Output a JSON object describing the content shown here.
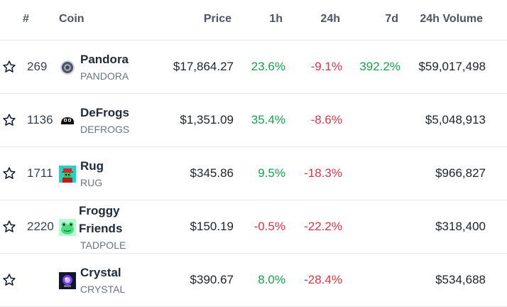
{
  "headers": {
    "rank": "#",
    "coin": "Coin",
    "price": "Price",
    "h1": "1h",
    "h24": "24h",
    "d7": "7d",
    "volume": "24h Volume"
  },
  "rows": [
    {
      "rank": "269",
      "name": "Pandora",
      "symbol": "PANDORA",
      "price": "$17,864.27",
      "change_1h": "23.6%",
      "change_24h": "-9.1%",
      "change_7d": "392.2%",
      "volume": "$59,017,498",
      "icon": "pandora-coin-icon"
    },
    {
      "rank": "1136",
      "name": "DeFrogs",
      "symbol": "DEFROGS",
      "price": "$1,351.09",
      "change_1h": "35.4%",
      "change_24h": "-8.6%",
      "change_7d": "",
      "volume": "$5,048,913",
      "icon": "defrogs-coin-icon"
    },
    {
      "rank": "1711",
      "name": "Rug",
      "symbol": "RUG",
      "price": "$345.86",
      "change_1h": "9.5%",
      "change_24h": "-18.3%",
      "change_7d": "",
      "volume": "$966,827",
      "icon": "rug-coin-icon"
    },
    {
      "rank": "2220",
      "name_line1": "Froggy",
      "name_line2": "Friends",
      "symbol": "TADPOLE",
      "price": "$150.19",
      "change_1h": "-0.5%",
      "change_24h": "-22.2%",
      "change_7d": "",
      "volume": "$318,400",
      "icon": "froggy-friends-coin-icon"
    },
    {
      "rank": "",
      "name": "Crystal",
      "symbol": "CRYSTAL",
      "price": "$390.67",
      "change_1h": "8.0%",
      "change_24h": "-28.4%",
      "change_7d": "",
      "volume": "$534,688",
      "icon": "crystal-coin-icon"
    }
  ],
  "colors": {
    "positive": "#16a34a",
    "negative": "#dc3545",
    "divider": "#e5e7eb"
  }
}
